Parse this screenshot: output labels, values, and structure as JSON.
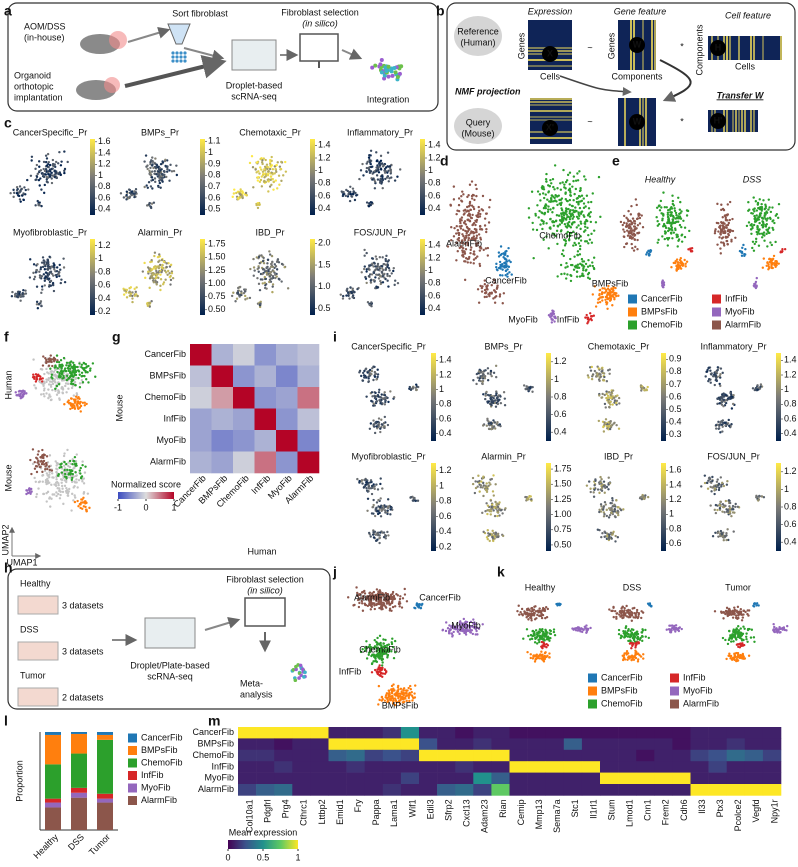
{
  "panel_labels": [
    "a",
    "b",
    "c",
    "d",
    "e",
    "f",
    "g",
    "h",
    "i",
    "j",
    "k",
    "l",
    "m"
  ],
  "cell_types": [
    {
      "name": "CancerFib",
      "color": "#1f77b4"
    },
    {
      "name": "BMPsFib",
      "color": "#ff7f0e"
    },
    {
      "name": "ChemoFib",
      "color": "#2ca02c"
    },
    {
      "name": "InfFib",
      "color": "#d62728"
    },
    {
      "name": "MyoFib",
      "color": "#9467bd"
    },
    {
      "name": "AlarmFib",
      "color": "#8c564b"
    }
  ],
  "panel_a": {
    "aom_dss": "AOM/DSS",
    "in_house": "(in-house)",
    "organoid": "Organoid",
    "orthotopic": "orthotopic",
    "implantation": "implantation",
    "sort": "Sort fibroblast",
    "droplet": "Droplet-based",
    "scrnaseq": "scRNA-seq",
    "selection": "Fibroblast selection",
    "in_silico": "(in silico)",
    "integration": "Integration"
  },
  "panel_b": {
    "reference": "Reference",
    "human": "(Human)",
    "expression": "Expression",
    "gene_feature": "Gene feature",
    "cell_feature": "Cell feature",
    "x_genes": "Genes",
    "x_cells": "Cells",
    "w_genes": "Genes",
    "w_components": "Components",
    "h_components": "Components",
    "h_cells": "Cells",
    "x": "X",
    "w": "W",
    "h": "H",
    "approx": "~",
    "times": "*",
    "nmf": "NMF projection",
    "query": "Query",
    "mouse": "(Mouse)",
    "x_query": "X'",
    "w_query": "W",
    "h_query": "H'",
    "approx_query": "~",
    "times_query": "*",
    "transfer": "Transfer W"
  },
  "panel_c": {
    "plots": [
      {
        "title": "CancerSpecific_Pr",
        "clim": [
          0.3,
          1.65
        ],
        "ticks": [
          0.4,
          0.6,
          0.8,
          1,
          1.2,
          1.4,
          1.6
        ]
      },
      {
        "title": "BMPs_Pr",
        "clim": [
          0.45,
          1.12
        ],
        "ticks": [
          0.5,
          0.6,
          0.7,
          0.8,
          0.9,
          1,
          1.1
        ]
      },
      {
        "title": "Chemotaxic_Pr",
        "clim": [
          0.3,
          1.5
        ],
        "ticks": [
          0.4,
          0.6,
          0.8,
          1,
          1.2,
          1.4
        ]
      },
      {
        "title": "Inflammatory_Pr",
        "clim": [
          0.3,
          1.5
        ],
        "ticks": [
          0.4,
          0.6,
          0.8,
          1,
          1.2,
          1.4
        ]
      },
      {
        "title": "Myofibroblastic_Pr",
        "clim": [
          0.15,
          1.3
        ],
        "ticks": [
          0.2,
          0.4,
          0.6,
          0.8,
          1,
          1.2
        ]
      },
      {
        "title": "Alarmin_Pr",
        "clim": [
          0.4,
          1.85
        ],
        "ticks": [
          {
            "value": 0.5,
            "label": "0.50"
          },
          0.75,
          {
            "value": 1,
            "label": "1.00"
          },
          1.25,
          {
            "value": 1.5,
            "label": "1.50"
          },
          1.75
        ]
      },
      {
        "title": "IBD_Pr",
        "clim": [
          0.35,
          2.1
        ],
        "ticks": [
          0.5,
          {
            "value": 1,
            "label": "1.0"
          },
          1.5,
          {
            "value": 2,
            "label": "2.0"
          }
        ]
      },
      {
        "title": "FOS/JUN_Pr",
        "clim": [
          0.3,
          1.5
        ],
        "ticks": [
          0.4,
          0.6,
          0.8,
          1,
          1.2,
          1.4
        ]
      }
    ]
  },
  "panel_d": {
    "labels": [
      "AlarmFib",
      "ChemoFib",
      "CancerFib",
      "BMPsFib",
      "MyoFib",
      "InfFib"
    ]
  },
  "panel_e": {
    "titles": [
      "Healthy",
      "DSS"
    ]
  },
  "panel_f": {
    "human": "Human",
    "mouse": "Mouse",
    "umap2": "UMAP2",
    "umap1": "UMAP1"
  },
  "panel_h": {
    "healthy": "Healthy",
    "healthy_n": "3 datasets",
    "dss": "DSS",
    "dss_n": "3 datasets",
    "tumor": "Tumor",
    "tumor_n": "2 datasets",
    "platform": "Droplet/Plate-based",
    "scrnaseq": "scRNA-seq",
    "selection": "Fibroblast selection",
    "in_silico": "(in silico)",
    "meta": "Meta-",
    "analysis": "analysis"
  },
  "panel_i": {
    "plots": [
      {
        "title": "CancerSpecific_Pr",
        "clim": [
          0.3,
          1.5
        ],
        "ticks": [
          0.4,
          0.6,
          0.8,
          1,
          1.2,
          1.4
        ]
      },
      {
        "title": "BMPs_Pr",
        "clim": [
          0.3,
          1.3
        ],
        "ticks": [
          0.4,
          0.6,
          0.8,
          1,
          1.2
        ]
      },
      {
        "title": "Chemotaxic_Pr",
        "clim": [
          0.25,
          0.95
        ],
        "ticks": [
          0.3,
          0.4,
          0.5,
          0.6,
          0.7,
          0.8,
          0.9
        ]
      },
      {
        "title": "Inflammatory_Pr",
        "clim": [
          0.3,
          1.5
        ],
        "ticks": [
          0.4,
          0.6,
          0.8,
          1,
          1.2,
          1.4
        ]
      },
      {
        "title": "Myofibroblastic_Pr",
        "clim": [
          0.15,
          1.3
        ],
        "ticks": [
          0.2,
          0.4,
          0.6,
          0.8,
          1,
          1.2
        ]
      },
      {
        "title": "Alarmin_Pr",
        "clim": [
          0.4,
          1.85
        ],
        "ticks": [
          {
            "value": 0.5,
            "label": "0.50"
          },
          0.75,
          {
            "value": 1,
            "label": "1.00"
          },
          1.25,
          {
            "value": 1.5,
            "label": "1.50"
          },
          1.75
        ]
      },
      {
        "title": "IBD_Pr",
        "clim": [
          0.5,
          1.7
        ],
        "ticks": [
          0.6,
          0.8,
          1,
          1.2,
          1.4,
          1.6
        ]
      },
      {
        "title": "FOS/JUN_Pr",
        "clim": [
          0.3,
          1.3
        ],
        "ticks": [
          0.4,
          0.6,
          0.8,
          1,
          1.2
        ]
      }
    ]
  },
  "panel_j": {
    "labels": [
      "AlarmFib",
      "CancerFib",
      "MyoFib",
      "ChemoFib",
      "InfFib",
      "BMPsFib"
    ]
  },
  "panel_k": {
    "titles": [
      "Healthy",
      "DSS",
      "Tumor"
    ]
  },
  "chart_data": [
    {
      "type": "heatmap",
      "colormap": "coolwarm",
      "rows": [
        "CancerFib",
        "BMPsFib",
        "ChemoFib",
        "InfFib",
        "MyoFib",
        "AlarmFib"
      ],
      "categories": [
        "CancerFib",
        "BMPsFib",
        "ChemoFib",
        "InfFib",
        "MyoFib",
        "AlarmFib"
      ],
      "values": [
        [
          1,
          -0.3,
          -0.1,
          -0.5,
          -0.3,
          -0.2
        ],
        [
          -0.2,
          1,
          -0.5,
          -0.3,
          -0.6,
          -0.3
        ],
        [
          -0.1,
          0.3,
          1,
          -0.5,
          -0.4,
          0.5
        ],
        [
          -0.4,
          -0.3,
          -0.4,
          1,
          -0.5,
          -0.2
        ],
        [
          -0.4,
          -0.6,
          -0.5,
          -0.3,
          1,
          -0.6
        ],
        [
          -0.3,
          -0.4,
          -0.1,
          0.5,
          -0.5,
          1
        ]
      ],
      "xlabel": "Human",
      "ylabel": "Mouse",
      "colorbar_label": "Normalized score",
      "clim": [
        -1,
        1
      ],
      "cticks": [
        -1,
        0,
        1
      ]
    },
    {
      "type": "bar",
      "stacked": true,
      "categories": [
        "Healthy",
        "DSS",
        "Tumor"
      ],
      "ylabel": "Proportion",
      "ylim": [
        0,
        1
      ],
      "series": [
        {
          "name": "CancerFib",
          "color": "#1f77b4",
          "values": [
            0.03,
            0.02,
            0.03
          ]
        },
        {
          "name": "BMPsFib",
          "color": "#ff7f0e",
          "values": [
            0.3,
            0.2,
            0.05
          ]
        },
        {
          "name": "ChemoFib",
          "color": "#2ca02c",
          "values": [
            0.35,
            0.35,
            0.55
          ]
        },
        {
          "name": "InfFib",
          "color": "#d62728",
          "values": [
            0.04,
            0.05,
            0.05
          ]
        },
        {
          "name": "MyoFib",
          "color": "#9467bd",
          "values": [
            0.05,
            0.05,
            0.04
          ]
        },
        {
          "name": "AlarmFib",
          "color": "#8c564b",
          "values": [
            0.23,
            0.33,
            0.28
          ]
        }
      ]
    },
    {
      "type": "heatmap",
      "colormap": "viridis",
      "rows": [
        "CancerFib",
        "BMPsFib",
        "ChemoFib",
        "InfFib",
        "MyoFib",
        "AlarmFib"
      ],
      "categories": [
        "Col10a1",
        "Pdgfrl",
        "Prg4",
        "Cthrc1",
        "Lttbp2",
        "Emid1",
        "Fry",
        "Pappa",
        "Lama1",
        "Wif1",
        "Edil3",
        "Sfrp2",
        "Cxcl13",
        "Adam23",
        "Rian",
        "Cemip",
        "Mmp13",
        "Sema7a",
        "Stc1",
        "Il1rl1",
        "Stum",
        "Lmod1",
        "Cnn1",
        "Frem2",
        "Cdh6",
        "Il33",
        "Ptx3",
        "Pcolce2",
        "Vegfd",
        "Npy1r"
      ],
      "values": [
        [
          1,
          1,
          1,
          1,
          1,
          0.1,
          0.1,
          0.1,
          0.15,
          0.5,
          0.1,
          0.1,
          0.05,
          0.1,
          0.1,
          0.05,
          0.05,
          0.05,
          0.05,
          0.05,
          0.05,
          0.05,
          0.05,
          0.05,
          0.05,
          0.1,
          0.1,
          0.1,
          0.1,
          0.1
        ],
        [
          0.1,
          0.1,
          0.05,
          0.1,
          0.1,
          1,
          1,
          1,
          1,
          1,
          0.25,
          0.1,
          0.1,
          0.15,
          0.1,
          0.1,
          0.1,
          0.1,
          0.3,
          0.1,
          0.1,
          0.1,
          0.1,
          0.1,
          0.05,
          0.1,
          0.1,
          0.15,
          0.1,
          0.1
        ],
        [
          0.15,
          0.15,
          0.1,
          0.1,
          0.1,
          0.3,
          0.35,
          0.2,
          0.25,
          0.2,
          1,
          1,
          1,
          1,
          1,
          0.1,
          0.1,
          0.1,
          0.1,
          0.1,
          0.1,
          0.1,
          0.05,
          0.1,
          0.1,
          0.2,
          0.25,
          0.35,
          0.3,
          0.2
        ],
        [
          0.1,
          0.1,
          0.15,
          0.1,
          0.1,
          0.1,
          0.15,
          0.1,
          0.1,
          0.1,
          0.1,
          0.1,
          0.15,
          0.1,
          0.1,
          1,
          1,
          1,
          1,
          1,
          0.1,
          0.1,
          0.1,
          0.1,
          0.1,
          0.1,
          0.2,
          0.1,
          0.1,
          0.1
        ],
        [
          0.1,
          0.1,
          0.1,
          0.1,
          0.1,
          0.1,
          0.1,
          0.1,
          0.1,
          0.2,
          0.1,
          0.1,
          0.1,
          0.5,
          0.3,
          0.1,
          0.1,
          0.1,
          0.1,
          0.1,
          1,
          1,
          1,
          1,
          1,
          0.1,
          0.1,
          0.1,
          0.1,
          0.1
        ],
        [
          0.2,
          0.3,
          0.35,
          0.1,
          0.1,
          0.1,
          0.1,
          0.1,
          0.15,
          0.1,
          0.1,
          0.3,
          0.35,
          0.2,
          0.75,
          0.1,
          0.1,
          0.1,
          0.1,
          0.1,
          0.1,
          0.1,
          0.1,
          0.1,
          0.1,
          1,
          1,
          1,
          1,
          1
        ]
      ],
      "colorbar_label": "Mean expression",
      "clim": [
        0,
        1
      ],
      "cticks": [
        0,
        0.5,
        1
      ]
    }
  ]
}
